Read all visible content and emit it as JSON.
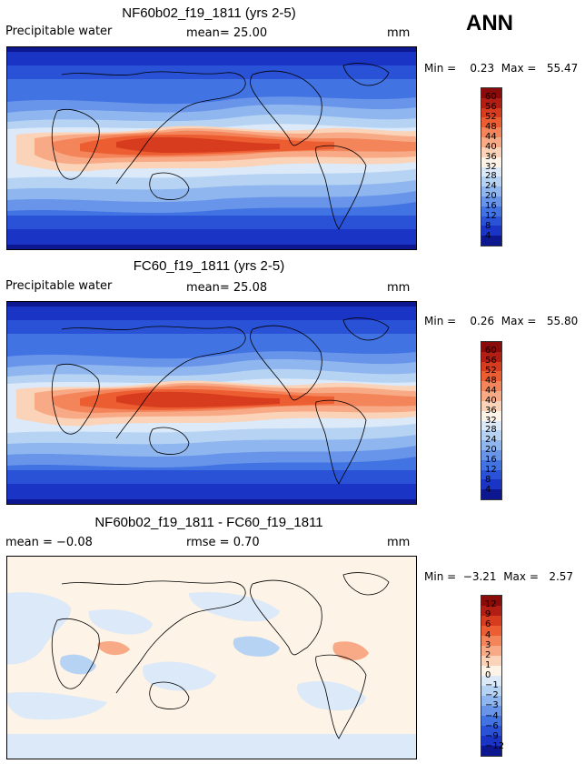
{
  "season_label": "ANN",
  "panels": [
    {
      "title": "NF60b02_f19_1811 (yrs 2-5)",
      "variable": "Precipitable water",
      "mean_text": "mean=  25.00",
      "unit": "mm",
      "minmax_text": "Min =    0.23  Max =   55.47",
      "levels": [
        "60",
        "56",
        "52",
        "48",
        "44",
        "40",
        "36",
        "32",
        "28",
        "24",
        "20",
        "16",
        "12",
        "8",
        "4"
      ],
      "colors": [
        "#8b0a0a",
        "#b21e14",
        "#d83c1e",
        "#ec5e32",
        "#f4845a",
        "#f8aa86",
        "#fbd3b8",
        "#fdf3e6",
        "#dbe9f8",
        "#b6d3f4",
        "#8fb6ef",
        "#6895ea",
        "#4273e2",
        "#2a52d6",
        "#1a34c6",
        "#0d1890"
      ]
    },
    {
      "title": "FC60_f19_1811 (yrs 2-5)",
      "variable": "Precipitable water",
      "mean_text": "mean=  25.08",
      "unit": "mm",
      "minmax_text": "Min =    0.26  Max =   55.80",
      "levels": [
        "60",
        "56",
        "52",
        "48",
        "44",
        "40",
        "36",
        "32",
        "28",
        "24",
        "20",
        "16",
        "12",
        "8",
        "4"
      ],
      "colors": [
        "#8b0a0a",
        "#b21e14",
        "#d83c1e",
        "#ec5e32",
        "#f4845a",
        "#f8aa86",
        "#fbd3b8",
        "#fdf3e6",
        "#dbe9f8",
        "#b6d3f4",
        "#8fb6ef",
        "#6895ea",
        "#4273e2",
        "#2a52d6",
        "#1a34c6",
        "#0d1890"
      ]
    },
    {
      "title": "NF60b02_f19_1811 - FC60_f19_1811",
      "variable": "mean =   −0.08",
      "mean_text": "rmse =   0.70",
      "unit": "mm",
      "minmax_text": "Min =  −3.21  Max =   2.57",
      "levels": [
        "12",
        "9",
        "6",
        "4",
        "3",
        "2",
        "1",
        "0",
        "−1",
        "−2",
        "−3",
        "−4",
        "−6",
        "−9",
        "−12"
      ],
      "colors": [
        "#8b0a0a",
        "#b21e14",
        "#d83c1e",
        "#ec5e32",
        "#f4845a",
        "#f8aa86",
        "#fbd3b8",
        "#fdf3e6",
        "#dbe9f8",
        "#b6d3f4",
        "#8fb6ef",
        "#6895ea",
        "#4273e2",
        "#2a52d6",
        "#1a34c6",
        "#0d1890"
      ]
    }
  ]
}
